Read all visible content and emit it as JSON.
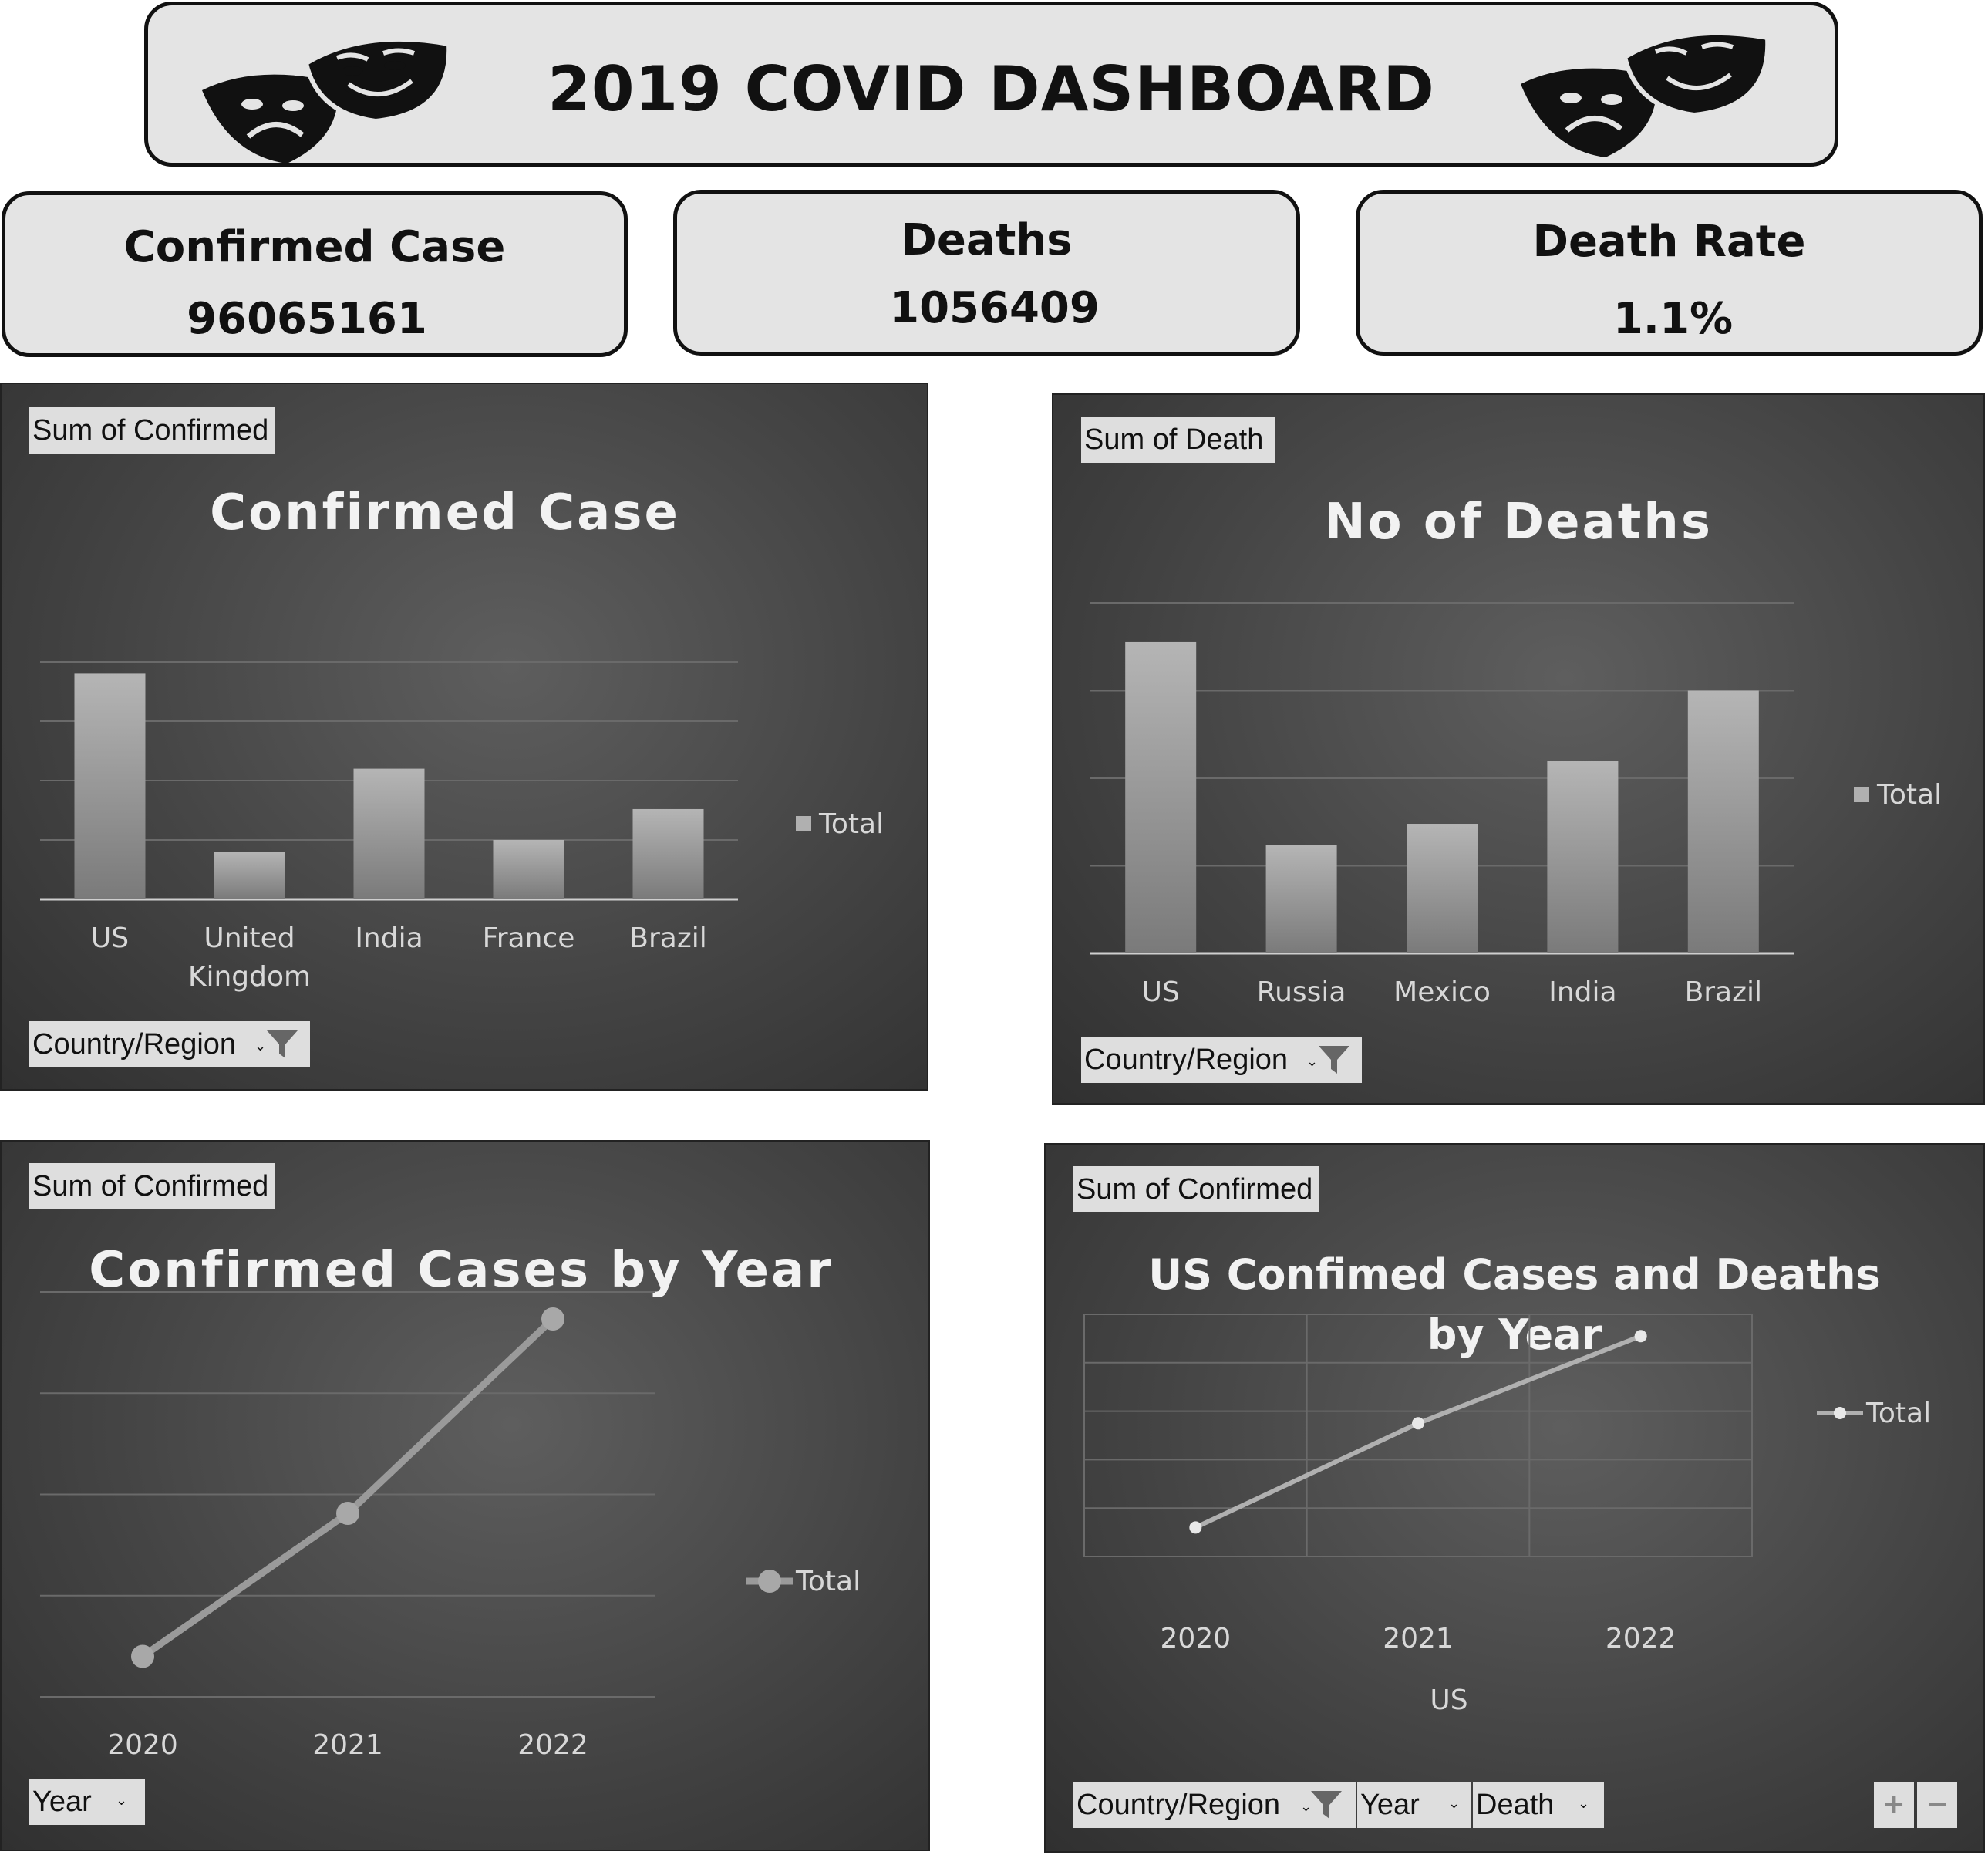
{
  "header": {
    "title": "2019 COVID DASHBOARD"
  },
  "kpis": [
    {
      "label": "Confirmed Case",
      "value": "96065161"
    },
    {
      "label": "Deaths",
      "value": "1056409"
    },
    {
      "label": "Death Rate",
      "value": "1.1%"
    }
  ],
  "panels": {
    "confirmed": {
      "field_button": "Sum of Confirmed",
      "filter_button": "Country/Region",
      "legend": "Total"
    },
    "deaths": {
      "field_button": "Sum of Death",
      "filter_button": "Country/Region",
      "legend": "Total"
    },
    "by_year": {
      "field_button": "Sum of Confirmed",
      "filter_button": "Year",
      "legend": "Total"
    },
    "us": {
      "field_button": "Sum of Confirmed",
      "filter_buttons": [
        "Country/Region",
        "Year",
        "Death"
      ],
      "legend": "Total",
      "zoom_in": "+",
      "zoom_out": "−"
    }
  },
  "chart_data": [
    {
      "type": "bar",
      "title": "Confirmed Case",
      "categories": [
        "US",
        "United Kingdom",
        "India",
        "France",
        "Brazil"
      ],
      "series": [
        {
          "name": "Total",
          "values": [
            95,
            20,
            55,
            25,
            38
          ]
        }
      ],
      "ylim": [
        0,
        100
      ],
      "grid": true,
      "legend_position": "right"
    },
    {
      "type": "bar",
      "title": "No of Deaths",
      "categories": [
        "US",
        "Russia",
        "Mexico",
        "India",
        "Brazil"
      ],
      "series": [
        {
          "name": "Total",
          "values": [
            89,
            31,
            37,
            55,
            75
          ]
        }
      ],
      "ylim": [
        0,
        100
      ],
      "grid": true,
      "legend_position": "right"
    },
    {
      "type": "line",
      "title": "Confirmed Cases by Year",
      "x": [
        "2020",
        "2021",
        "2022"
      ],
      "series": [
        {
          "name": "Total",
          "values": [
            15,
            68,
            140
          ]
        }
      ],
      "ylim": [
        0,
        150
      ],
      "grid": true,
      "legend_position": "right"
    },
    {
      "type": "line",
      "title": "US Confimed Cases and Deaths by Year",
      "x": [
        "2020",
        "2021",
        "2022"
      ],
      "xlabel": "US",
      "series": [
        {
          "name": "Total",
          "values": [
            12,
            55,
            91
          ]
        }
      ],
      "ylim": [
        0,
        100
      ],
      "grid": true,
      "legend_position": "right"
    }
  ],
  "colors": {
    "panel_bg": "#4a4a4a",
    "bar_top": "#b5b5b5",
    "bar_bottom": "#7a7a7a",
    "gridline": "#6a6a6a",
    "text_light": "#d8d8d8"
  }
}
